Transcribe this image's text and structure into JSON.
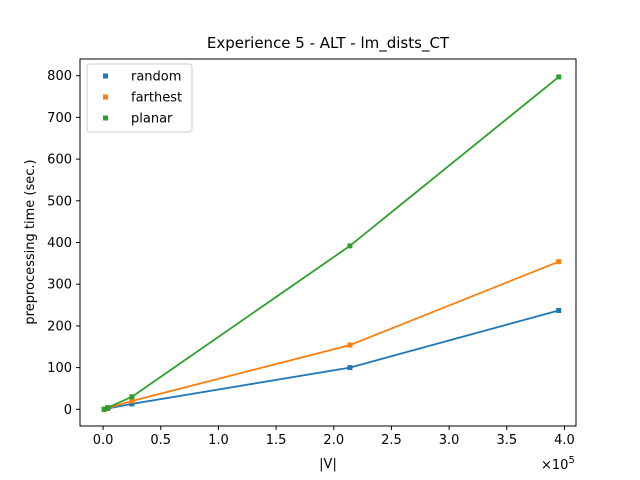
{
  "chart_data": {
    "type": "line",
    "title": "Experience 5 - ALT - lm_dists_CT",
    "xlabel": "|V|",
    "ylabel": "preprocessing time (sec.)",
    "x_multiplier_label": "×10",
    "x_multiplier_exponent": "5",
    "x_scale_factor": 100000,
    "xlim": [
      -0.2,
      4.1
    ],
    "ylim": [
      -40,
      840
    ],
    "x_ticks": [
      0.0,
      0.5,
      1.0,
      1.5,
      2.0,
      2.5,
      3.0,
      3.5,
      4.0
    ],
    "x_tick_labels": [
      "0.0",
      "0.5",
      "1.0",
      "1.5",
      "2.0",
      "2.5",
      "3.0",
      "3.5",
      "4.0"
    ],
    "y_ticks": [
      0,
      100,
      200,
      300,
      400,
      500,
      600,
      700,
      800
    ],
    "y_tick_labels": [
      "0",
      "100",
      "200",
      "300",
      "400",
      "500",
      "600",
      "700",
      "800"
    ],
    "grid": false,
    "legend_position": "top-left",
    "series": [
      {
        "name": "random",
        "color": "#1f77b4",
        "x": [
          1000,
          4000,
          25000,
          214000,
          395000
        ],
        "y": [
          0,
          2,
          13,
          100,
          237
        ]
      },
      {
        "name": "farthest",
        "color": "#ff7f0e",
        "x": [
          1000,
          4000,
          25000,
          214000,
          395000
        ],
        "y": [
          0,
          3,
          20,
          154,
          354
        ]
      },
      {
        "name": "planar",
        "color": "#2ca02c",
        "x": [
          1000,
          4000,
          25000,
          214000,
          395000
        ],
        "y": [
          0,
          4,
          30,
          392,
          797
        ]
      }
    ]
  }
}
